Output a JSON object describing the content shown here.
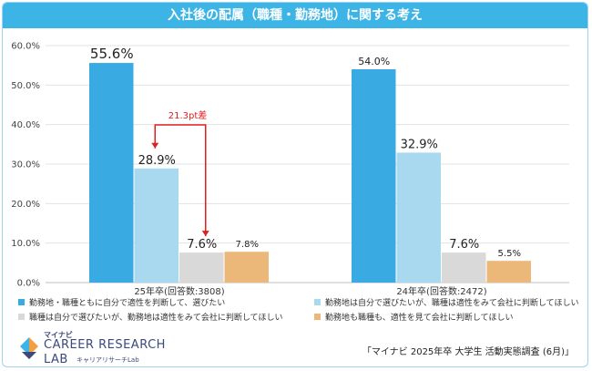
{
  "chart_data": {
    "type": "bar",
    "title": "入社後の配属（職種・勤務地）に関する考え",
    "categories": [
      "25年卒(回答数:3808)",
      "24年卒(回答数:2472)"
    ],
    "series": [
      {
        "name": "勤務地・職種ともに自分で適性を判断して、選びたい",
        "values": [
          55.6,
          54.0
        ],
        "labels": [
          "55.6%",
          "54.0%"
        ],
        "color": "#3aaae2"
      },
      {
        "name": "勤務地は自分で選びたいが、職種は適性をみて会社に判断してほしい",
        "values": [
          28.9,
          32.9
        ],
        "labels": [
          "28.9%",
          "32.9%"
        ],
        "color": "#a8d9ef"
      },
      {
        "name": "職種は自分で選びたいが、勤務地は適性をみて会社に判断してほしい",
        "values": [
          7.6,
          7.6
        ],
        "labels": [
          "7.6%",
          "7.6%"
        ],
        "color": "#d9d9d9"
      },
      {
        "name": "勤務地も職種も、適性を見て会社に判断してほしい",
        "values": [
          7.8,
          5.5
        ],
        "labels": [
          "7.8%",
          "5.5%"
        ],
        "color": "#ebb87a"
      }
    ],
    "ylim": [
      0,
      60
    ],
    "yticks": [
      0,
      10,
      20,
      30,
      40,
      50,
      60
    ],
    "ytick_labels": [
      "0.0%",
      "10.0%",
      "20.0%",
      "30.0%",
      "40.0%",
      "50.0%",
      "60.0%"
    ],
    "grid": true,
    "legend_position": "bottom",
    "annotation": {
      "text": "21.3pt差",
      "from_value": 28.9,
      "to_value": 7.6,
      "color": "#e02020"
    }
  },
  "logo": {
    "top": "マイナビ",
    "main": "CAREER RESEARCH",
    "sub": "LAB",
    "tag": "キャリアリサーチLab"
  },
  "source": "「マイナビ 2025年卒 大学生 活動実態調査 (6月)」"
}
